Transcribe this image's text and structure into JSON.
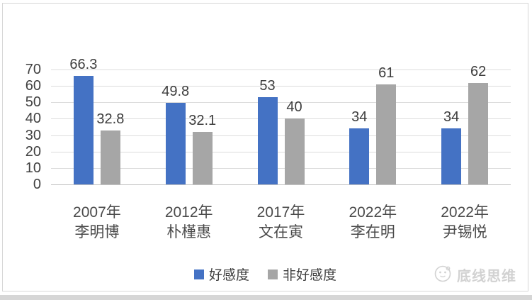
{
  "chart_data": {
    "type": "bar",
    "title": "",
    "categories": [
      {
        "year": "2007年",
        "name": "李明博"
      },
      {
        "year": "2012年",
        "name": "朴槿惠"
      },
      {
        "year": "2017年",
        "name": "文在寅"
      },
      {
        "year": "2022年",
        "name": "李在明"
      },
      {
        "year": "2022年",
        "name": "尹锡悦"
      }
    ],
    "series": [
      {
        "name": "好感度",
        "color": "#4472C4",
        "values": [
          66.3,
          49.8,
          53,
          34,
          34
        ]
      },
      {
        "name": "非好感度",
        "color": "#A6A6A6",
        "values": [
          32.8,
          32.1,
          40,
          61,
          62
        ]
      }
    ],
    "y_axis": {
      "min": 0,
      "max": 70,
      "step": 10,
      "tick_labels": [
        "70",
        "60",
        "50",
        "40",
        "30",
        "20",
        "10",
        "0"
      ]
    },
    "grid": true,
    "legend_position": "bottom",
    "value_labels_shown": true
  },
  "watermark": {
    "text": "底线思维"
  },
  "colors": {
    "bar_blue": "#4472C4",
    "bar_gray": "#A6A6A6",
    "gridline": "#dcdcdc",
    "axis_line": "#c3c3c3",
    "text": "#404040",
    "card_border": "#d7d7d7",
    "watermark": "#d2d2d2"
  }
}
